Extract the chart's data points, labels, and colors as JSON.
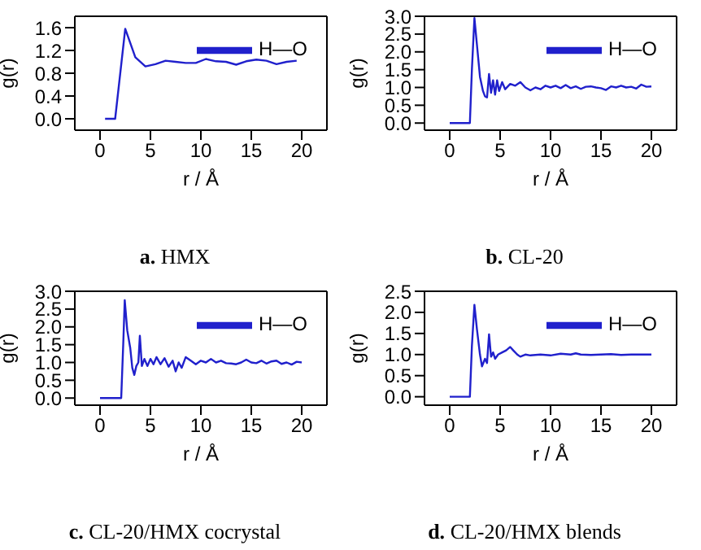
{
  "chart_data": [
    {
      "type": "line",
      "title": "a.  HMX",
      "xlabel": "r / Å",
      "ylabel": "g(r)",
      "legend": "top right",
      "xlim": [
        -2.5,
        22.5
      ],
      "xticks": [
        0,
        5,
        10,
        15,
        20
      ],
      "ylim": [
        -0.2,
        1.8
      ],
      "yticks": [
        {
          "value": 0,
          "label": "0.0"
        },
        0.4,
        0.8,
        1.2,
        1.6
      ],
      "x": [
        0.5,
        1.5,
        2.5,
        3.5,
        4.5,
        5.5,
        6.5,
        7.5,
        8.5,
        9.5,
        10.5,
        11.5,
        12.5,
        13.5,
        14.5,
        15.5,
        16.5,
        17.5,
        18.5,
        19.5
      ],
      "series": [
        {
          "name": "H—O",
          "color": "#2020cc",
          "values": [
            0,
            0,
            1.58,
            1.08,
            0.92,
            0.96,
            1.02,
            1.0,
            0.98,
            0.98,
            1.05,
            1.01,
            1.0,
            0.95,
            1.01,
            1.04,
            1.02,
            0.96,
            1.0,
            1.02
          ]
        }
      ]
    },
    {
      "type": "line",
      "title": "b.  CL-20",
      "xlabel": "r / Å",
      "ylabel": "g(r)",
      "legend": "top right",
      "xlim": [
        -2.5,
        22.5
      ],
      "xticks": [
        0,
        5,
        10,
        15,
        20
      ],
      "ylim": [
        -0.2,
        3.0
      ],
      "yticks": [
        {
          "value": 0,
          "label": "0.0"
        },
        0.5,
        {
          "value": 1,
          "label": "1.0"
        },
        1.5,
        {
          "value": 2,
          "label": "2.0"
        },
        2.5,
        {
          "value": 3,
          "label": "3.0"
        }
      ],
      "x": [
        0,
        2.0,
        2.2,
        2.45,
        2.7,
        3.0,
        3.3,
        3.5,
        3.7,
        3.9,
        4.1,
        4.3,
        4.5,
        4.7,
        4.9,
        5.2,
        5.5,
        6,
        6.5,
        7,
        7.5,
        8,
        8.5,
        9,
        9.5,
        10,
        10.5,
        11,
        11.5,
        12,
        12.5,
        13,
        13.5,
        14,
        14.5,
        15,
        15.5,
        16,
        16.5,
        17,
        17.5,
        18,
        18.5,
        19,
        19.5,
        20
      ],
      "series": [
        {
          "name": "H—O",
          "color": "#2020cc",
          "values": [
            0,
            0,
            1.5,
            2.95,
            2.2,
            1.3,
            0.9,
            0.75,
            0.72,
            1.38,
            0.85,
            1.2,
            0.8,
            1.2,
            0.9,
            1.15,
            0.95,
            1.1,
            1.05,
            1.15,
            1.0,
            0.92,
            1.0,
            0.95,
            1.05,
            1.0,
            1.05,
            0.98,
            1.07,
            0.98,
            1.03,
            0.96,
            1.02,
            1.03,
            1.0,
            0.98,
            0.93,
            1.03,
            1.0,
            1.05,
            1.0,
            1.02,
            0.97,
            1.08,
            1.02,
            1.03
          ]
        }
      ]
    },
    {
      "type": "line",
      "title": "c.  CL-20/HMX cocrystal",
      "xlabel": "r / Å",
      "ylabel": "g(r)",
      "legend": "top right",
      "xlim": [
        -2.5,
        22.5
      ],
      "xticks": [
        0,
        5,
        10,
        15,
        20
      ],
      "ylim": [
        -0.2,
        3.0
      ],
      "yticks": [
        {
          "value": 0,
          "label": "0.0"
        },
        0.5,
        {
          "value": 1,
          "label": "1.0"
        },
        1.5,
        {
          "value": 2,
          "label": "2.0"
        },
        2.5,
        {
          "value": 3,
          "label": "3.0"
        }
      ],
      "x": [
        0,
        2.1,
        2.3,
        2.45,
        2.7,
        3.0,
        3.2,
        3.4,
        3.6,
        3.8,
        3.95,
        4.15,
        4.4,
        4.7,
        5.0,
        5.3,
        5.6,
        6,
        6.4,
        6.8,
        7.2,
        7.5,
        7.8,
        8.1,
        8.5,
        9,
        9.5,
        10,
        10.5,
        11,
        11.5,
        12,
        12.5,
        13,
        13.5,
        14,
        14.5,
        15,
        15.5,
        16,
        16.5,
        17,
        17.5,
        18,
        18.5,
        19,
        19.5,
        20
      ],
      "series": [
        {
          "name": "H—O",
          "color": "#2020cc",
          "values": [
            0,
            0,
            1.5,
            2.75,
            1.9,
            1.4,
            0.85,
            0.65,
            0.9,
            1.0,
            1.75,
            0.9,
            1.1,
            0.9,
            1.1,
            0.95,
            1.15,
            0.95,
            1.12,
            0.88,
            1.05,
            0.75,
            1.0,
            0.85,
            1.15,
            1.05,
            0.95,
            1.05,
            1.0,
            1.1,
            1.0,
            1.05,
            0.98,
            0.97,
            0.95,
            1.0,
            1.08,
            1.0,
            0.98,
            1.05,
            0.97,
            1.03,
            1.05,
            0.96,
            1.0,
            0.94,
            1.02,
            1.0
          ]
        }
      ]
    },
    {
      "type": "line",
      "title": "d.  CL-20/HMX blends",
      "xlabel": "r / Å",
      "ylabel": "g(r)",
      "legend": "top right",
      "xlim": [
        -2.5,
        22.5
      ],
      "xticks": [
        0,
        5,
        10,
        15,
        20
      ],
      "ylim": [
        -0.2,
        2.5
      ],
      "yticks": [
        {
          "value": 0,
          "label": "0.0"
        },
        0.5,
        {
          "value": 1,
          "label": "1.0"
        },
        1.5,
        {
          "value": 2,
          "label": "2.0"
        },
        2.5
      ],
      "x": [
        0,
        2.0,
        2.2,
        2.45,
        2.7,
        3.0,
        3.2,
        3.5,
        3.7,
        3.9,
        4.1,
        4.3,
        4.5,
        4.8,
        5.2,
        5.6,
        6.0,
        6.3,
        6.7,
        7,
        7.5,
        8,
        9,
        10,
        11,
        12,
        12.5,
        13,
        14,
        15,
        16,
        17,
        18,
        19,
        20
      ],
      "series": [
        {
          "name": "H—O",
          "color": "#2020cc",
          "values": [
            0,
            0,
            1.2,
            2.18,
            1.6,
            1.0,
            0.72,
            0.9,
            0.8,
            1.48,
            0.95,
            1.05,
            0.9,
            1.0,
            1.05,
            1.1,
            1.18,
            1.1,
            1.0,
            0.95,
            1.0,
            0.98,
            1.0,
            0.98,
            1.02,
            1.0,
            1.03,
            1.0,
            0.99,
            1.0,
            1.01,
            0.99,
            1.0,
            1.0,
            1.0
          ]
        }
      ]
    }
  ]
}
